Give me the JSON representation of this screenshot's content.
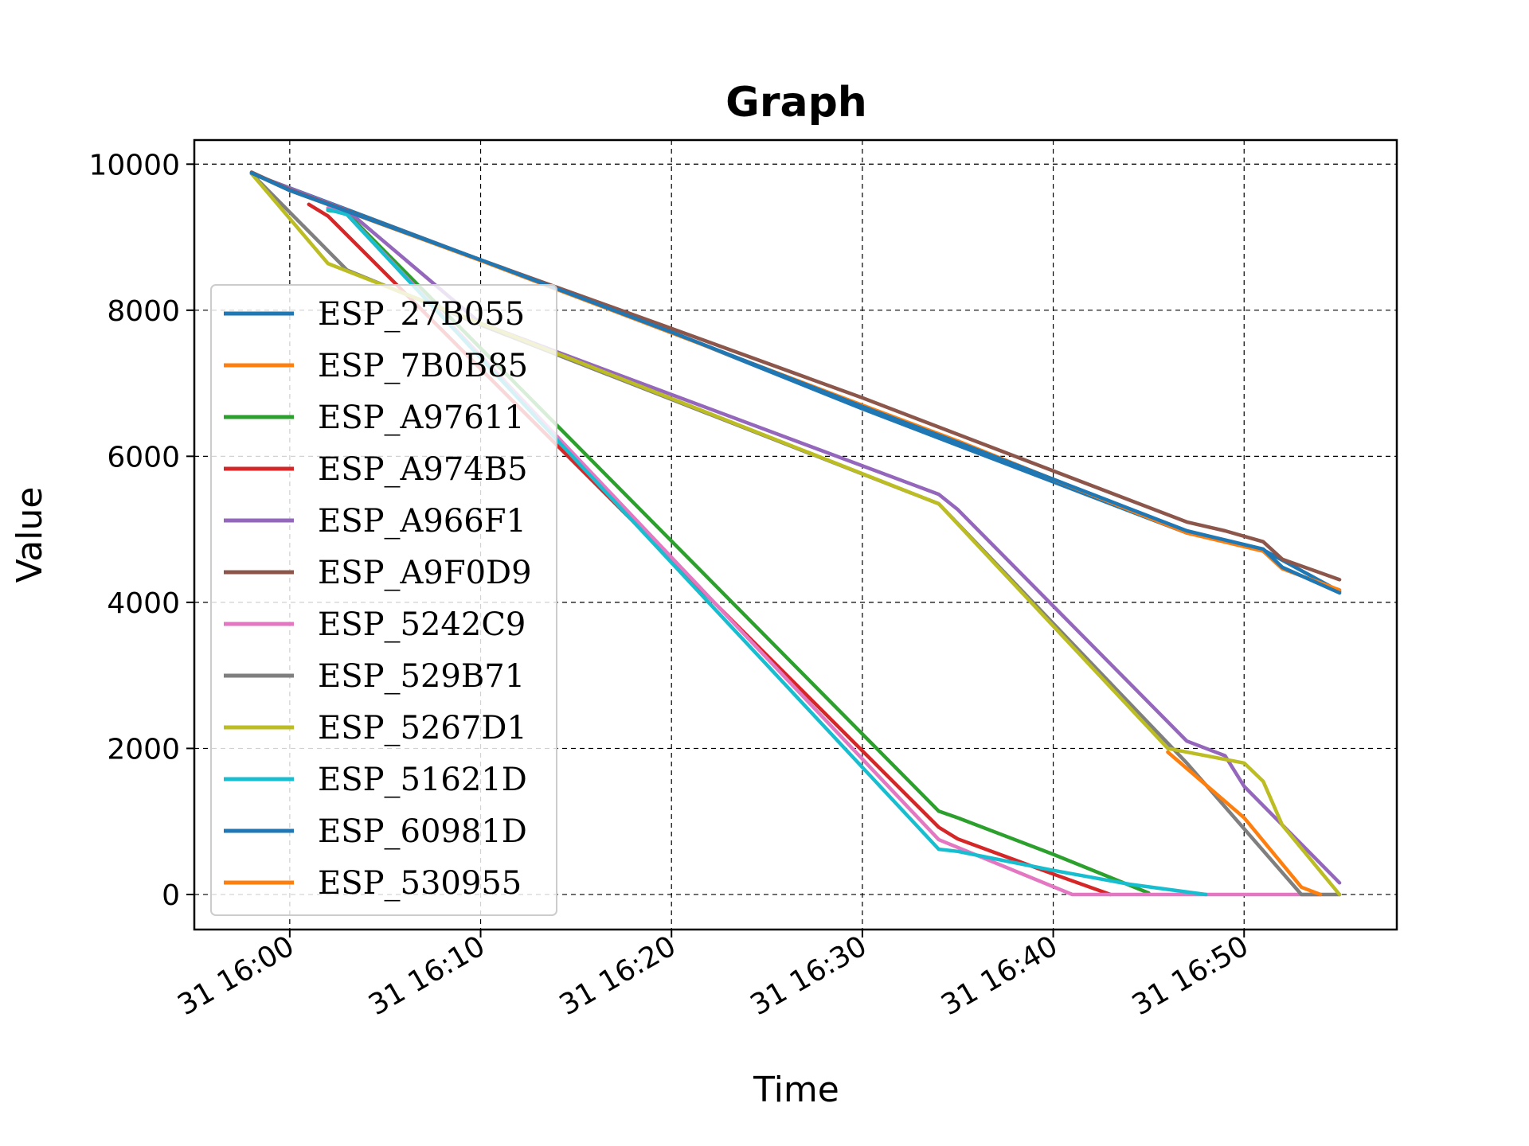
{
  "chart_data": {
    "type": "line",
    "title": "Graph",
    "xlabel": "Time",
    "ylabel": "Value",
    "xlim": [
      "31 15:55",
      "31 16:58"
    ],
    "ylim": [
      -480,
      10330
    ],
    "x_ticks": [
      {
        "t": "31 16:00",
        "label": "31 16:00"
      },
      {
        "t": "31 16:10",
        "label": "31 16:10"
      },
      {
        "t": "31 16:20",
        "label": "31 16:20"
      },
      {
        "t": "31 16:30",
        "label": "31 16:30"
      },
      {
        "t": "31 16:40",
        "label": "31 16:40"
      },
      {
        "t": "31 16:50",
        "label": "31 16:50"
      }
    ],
    "y_ticks": [
      0,
      2000,
      4000,
      6000,
      8000,
      10000
    ],
    "grid": true,
    "legend_position": "left",
    "series": [
      {
        "name": "ESP_27B055",
        "color": "#1f77b4",
        "x": [
          "31 15:58",
          "31 16:03",
          "31 16:20",
          "31 16:30",
          "31 16:35",
          "31 16:47",
          "31 16:51",
          "31 16:55"
        ],
        "y": [
          9870,
          9380,
          7700,
          6650,
          6150,
          4950,
          4720,
          4150
        ]
      },
      {
        "name": "ESP_7B0B85",
        "color": "#ff7f0e",
        "x": [
          "31 15:58",
          "31 16:00",
          "31 16:10",
          "31 16:20",
          "31 16:30",
          "31 16:35",
          "31 16:47",
          "31 16:51",
          "31 16:52",
          "31 16:55"
        ],
        "y": [
          9880,
          9640,
          8680,
          7690,
          6700,
          6210,
          4950,
          4700,
          4460,
          4170
        ]
      },
      {
        "name": "ESP_A97611",
        "color": "#2ca02c",
        "x": [
          "31 16:02",
          "31 16:03",
          "31 16:34",
          "31 16:35",
          "31 16:40",
          "31 16:45"
        ],
        "y": [
          9370,
          9330,
          1140,
          1050,
          550,
          20
        ]
      },
      {
        "name": "ESP_A974B5",
        "color": "#d62728",
        "x": [
          "31 16:01",
          "31 16:02",
          "31 16:34",
          "31 16:35",
          "31 16:40",
          "31 16:43"
        ],
        "y": [
          9450,
          9290,
          920,
          760,
          280,
          0
        ]
      },
      {
        "name": "ESP_A966F1",
        "color": "#9467bd",
        "x": [
          "31 15:58",
          "31 16:03",
          "31 16:10",
          "31 16:34",
          "31 16:35",
          "31 16:47",
          "31 16:49",
          "31 16:50",
          "31 16:55"
        ],
        "y": [
          9870,
          9370,
          7820,
          5480,
          5270,
          2100,
          1900,
          1480,
          160
        ]
      },
      {
        "name": "ESP_A9F0D9",
        "color": "#8c564b",
        "x": [
          "31 15:58",
          "31 16:00",
          "31 16:10",
          "31 16:20",
          "31 16:30",
          "31 16:47",
          "31 16:49",
          "31 16:51",
          "31 16:52",
          "31 16:55"
        ],
        "y": [
          9890,
          9650,
          8690,
          7750,
          6800,
          5100,
          4980,
          4830,
          4590,
          4310
        ]
      },
      {
        "name": "ESP_5242C9",
        "color": "#e377c2",
        "x": [
          "31 16:02",
          "31 16:03",
          "31 16:34",
          "31 16:41",
          "31 16:54"
        ],
        "y": [
          9400,
          9310,
          750,
          0,
          0
        ]
      },
      {
        "name": "ESP_529B71",
        "color": "#7f7f7f",
        "x": [
          "31 15:58",
          "31 16:03",
          "31 16:10",
          "31 16:34",
          "31 16:47",
          "31 16:48",
          "31 16:53",
          "31 16:55"
        ],
        "y": [
          9870,
          8550,
          7800,
          5350,
          1800,
          1500,
          0,
          0
        ]
      },
      {
        "name": "ESP_5267D1",
        "color": "#bcbd22",
        "x": [
          "31 15:58",
          "31 16:02",
          "31 16:10",
          "31 16:34",
          "31 16:46",
          "31 16:50",
          "31 16:51",
          "31 16:52",
          "31 16:55"
        ],
        "y": [
          9870,
          8640,
          7820,
          5350,
          2000,
          1800,
          1550,
          950,
          0
        ]
      },
      {
        "name": "ESP_51621D",
        "color": "#17becf",
        "x": [
          "31 16:02",
          "31 16:03",
          "31 16:34",
          "31 16:35",
          "31 16:40",
          "31 16:44",
          "31 16:48"
        ],
        "y": [
          9380,
          9310,
          620,
          590,
          330,
          140,
          0
        ]
      },
      {
        "name": "ESP_60981D",
        "color": "#1f77b4",
        "x": [
          "31 15:58",
          "31 16:00",
          "31 16:10",
          "31 16:20",
          "31 16:30",
          "31 16:35",
          "31 16:47",
          "31 16:51",
          "31 16:52",
          "31 16:55"
        ],
        "y": [
          9880,
          9640,
          8690,
          7700,
          6680,
          6190,
          4980,
          4730,
          4480,
          4130
        ]
      },
      {
        "name": "ESP_530955",
        "color": "#ff7f0e",
        "x": [
          "31 16:46",
          "31 16:50",
          "31 16:53",
          "31 16:54"
        ],
        "y": [
          1950,
          1050,
          100,
          0
        ]
      }
    ]
  }
}
